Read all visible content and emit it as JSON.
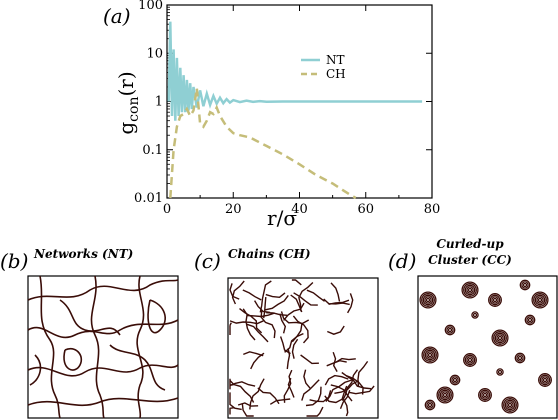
{
  "colors": {
    "nt": "#8fcfd3",
    "ch": "#c5bd79",
    "fiber": "#3a0d08",
    "frame": "#000000"
  },
  "panel_a": {
    "tag": "(a)",
    "xlabel": "r/σ",
    "ylabel_main": "g",
    "ylabel_sub": "con",
    "ylabel_arg": "(r)",
    "x_ticks": [
      "0",
      "20",
      "40",
      "60",
      "80"
    ],
    "y_ticks": [
      "0.01",
      "0.1",
      "1",
      "10",
      "100"
    ]
  },
  "chart_data": {
    "type": "line",
    "title": "",
    "xlabel": "r/σ",
    "ylabel": "g_con(r)",
    "xlim": [
      0,
      80
    ],
    "ylim": [
      0.01,
      100
    ],
    "yscale": "log",
    "grid": false,
    "legend_position": "upper-right",
    "series": [
      {
        "name": "NT",
        "style": "solid",
        "color": "#8fcfd3",
        "x": [
          0.5,
          1.0,
          1.5,
          2.0,
          2.5,
          3.0,
          3.5,
          4.0,
          4.5,
          5.0,
          5.5,
          6.0,
          6.5,
          7.0,
          7.5,
          8.0,
          9.0,
          10.0,
          11.0,
          12.0,
          13.0,
          14.0,
          15.0,
          16.0,
          17.0,
          18.0,
          19.0,
          20.0,
          22.0,
          24.0,
          26.0,
          28.0,
          30.0,
          35.0,
          40.0,
          50.0,
          60.0,
          70.0,
          77.0
        ],
        "y": [
          1.0,
          45.0,
          0.5,
          12.0,
          0.4,
          8.0,
          0.5,
          5.0,
          0.6,
          3.5,
          0.6,
          2.8,
          0.65,
          2.4,
          0.7,
          2.0,
          0.75,
          1.7,
          0.8,
          1.45,
          0.85,
          1.3,
          0.9,
          1.2,
          0.92,
          1.12,
          0.95,
          1.07,
          0.97,
          1.04,
          0.98,
          1.02,
          0.99,
          1.0,
          1.0,
          1.0,
          1.0,
          1.0,
          1.0
        ]
      },
      {
        "name": "CH",
        "style": "dashed",
        "color": "#c5bd79",
        "x": [
          1.0,
          2.0,
          3.0,
          4.0,
          5.0,
          6.0,
          7.0,
          8.0,
          9.0,
          10.0,
          11.0,
          12.0,
          13.0,
          14.0,
          15.0,
          16.0,
          18.0,
          20.0,
          22.0,
          25.0,
          30.0,
          35.0,
          40.0,
          45.0,
          50.0,
          55.0,
          57.0
        ],
        "y": [
          0.01,
          0.1,
          0.3,
          0.5,
          0.55,
          0.7,
          0.5,
          0.65,
          1.9,
          0.35,
          0.3,
          0.4,
          0.6,
          0.55,
          0.75,
          0.5,
          0.3,
          0.22,
          0.2,
          0.18,
          0.12,
          0.08,
          0.05,
          0.03,
          0.02,
          0.012,
          0.01
        ]
      }
    ]
  },
  "panel_b": {
    "tag": "(b)",
    "title": "Networks (NT)"
  },
  "panel_c": {
    "tag": "(c)",
    "title": "Chains (CH)"
  },
  "panel_d": {
    "tag": "(d)",
    "title_line1": "Curled-up",
    "title_line2": "Cluster (CC)"
  }
}
